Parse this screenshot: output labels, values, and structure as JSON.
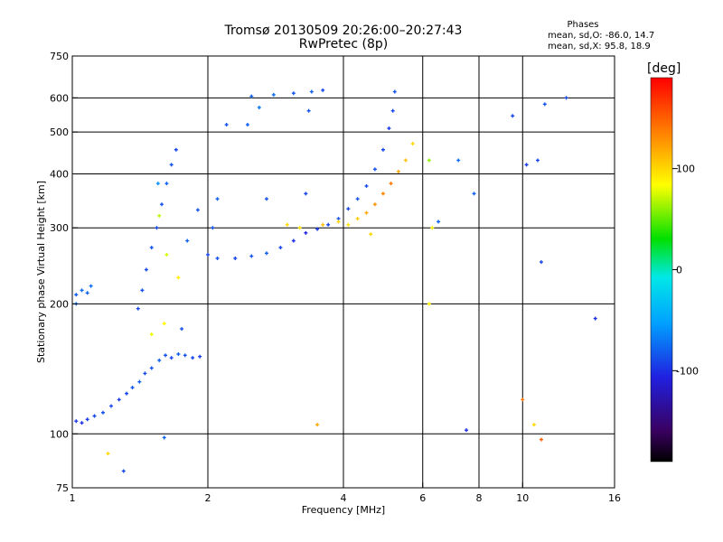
{
  "title": "Tromsø 20130509 20:26:00–20:27:43",
  "subtitle": "RwPretec (8p)",
  "phase_stats": {
    "title": "Phases",
    "line1": "mean, sd,O: -86.0, 14.7",
    "line2": "mean, sd,X:  95.8, 18.9"
  },
  "colorbar": {
    "unit": "[deg]",
    "range": [
      -190,
      190
    ],
    "ticks": [
      100,
      0,
      -100
    ],
    "tick_labels": [
      "100",
      "0",
      "-100"
    ]
  },
  "chart_data": {
    "type": "scatter",
    "title": "Tromsø 20130509 20:26:00–20:27:43",
    "subtitle": "RwPretec (8p)",
    "xlabel": "Frequency [MHz]",
    "ylabel": "Stationary phase Virtual Height [km]",
    "x_scale": "log",
    "y_scale": "log",
    "xlim": [
      1,
      16
    ],
    "ylim": [
      75,
      750
    ],
    "x_ticks": [
      1,
      2,
      4,
      6,
      8,
      10,
      16
    ],
    "x_tick_labels": [
      "1",
      "2",
      "4",
      "6",
      "8",
      "10",
      "16"
    ],
    "y_ticks": [
      75,
      100,
      200,
      300,
      400,
      500,
      600,
      750
    ],
    "y_tick_labels": [
      "75",
      "100",
      "200",
      "300",
      "400",
      "500",
      "600",
      "750"
    ],
    "grid_x": [
      2,
      4,
      6,
      8,
      10
    ],
    "grid_y": [
      100,
      200,
      300,
      400,
      500,
      600
    ],
    "color_by": "phase_deg",
    "series": [
      {
        "trace": "low-layer",
        "points": [
          {
            "x": 1.02,
            "y": 107,
            "p": -95
          },
          {
            "x": 1.05,
            "y": 106,
            "p": -100
          },
          {
            "x": 1.08,
            "y": 108,
            "p": -95
          },
          {
            "x": 1.12,
            "y": 110,
            "p": -90
          },
          {
            "x": 1.17,
            "y": 112,
            "p": -85
          },
          {
            "x": 1.22,
            "y": 116,
            "p": -90
          },
          {
            "x": 1.27,
            "y": 120,
            "p": -95
          },
          {
            "x": 1.32,
            "y": 124,
            "p": -90
          },
          {
            "x": 1.36,
            "y": 128,
            "p": -85
          },
          {
            "x": 1.41,
            "y": 132,
            "p": -80
          },
          {
            "x": 1.45,
            "y": 138,
            "p": -90
          },
          {
            "x": 1.5,
            "y": 142,
            "p": -85
          },
          {
            "x": 1.56,
            "y": 148,
            "p": -80
          },
          {
            "x": 1.61,
            "y": 152,
            "p": -85
          },
          {
            "x": 1.66,
            "y": 150,
            "p": -90
          },
          {
            "x": 1.72,
            "y": 153,
            "p": -80
          },
          {
            "x": 1.78,
            "y": 152,
            "p": -85
          },
          {
            "x": 1.85,
            "y": 150,
            "p": -90
          },
          {
            "x": 1.92,
            "y": 151,
            "p": -95
          }
        ]
      },
      {
        "trace": "E-region",
        "points": [
          {
            "x": 1.02,
            "y": 210,
            "p": -80
          },
          {
            "x": 1.05,
            "y": 215,
            "p": -75
          },
          {
            "x": 1.08,
            "y": 212,
            "p": -80
          },
          {
            "x": 1.1,
            "y": 220,
            "p": -75
          },
          {
            "x": 1.02,
            "y": 200,
            "p": -70
          }
        ]
      },
      {
        "trace": "F1-cusp",
        "points": [
          {
            "x": 1.4,
            "y": 195,
            "p": -90
          },
          {
            "x": 1.43,
            "y": 215,
            "p": -85
          },
          {
            "x": 1.46,
            "y": 240,
            "p": -90
          },
          {
            "x": 1.5,
            "y": 270,
            "p": -85
          },
          {
            "x": 1.54,
            "y": 300,
            "p": -90
          },
          {
            "x": 1.58,
            "y": 340,
            "p": -85
          },
          {
            "x": 1.62,
            "y": 380,
            "p": -80
          },
          {
            "x": 1.66,
            "y": 420,
            "p": -85
          },
          {
            "x": 1.7,
            "y": 455,
            "p": -90
          },
          {
            "x": 1.56,
            "y": 320,
            "p": 70
          },
          {
            "x": 1.62,
            "y": 260,
            "p": 75
          },
          {
            "x": 1.72,
            "y": 230,
            "p": 90
          },
          {
            "x": 1.8,
            "y": 280,
            "p": -80
          },
          {
            "x": 1.9,
            "y": 330,
            "p": -85
          },
          {
            "x": 2.0,
            "y": 260,
            "p": -90
          },
          {
            "x": 2.05,
            "y": 300,
            "p": -85
          },
          {
            "x": 2.1,
            "y": 350,
            "p": -80
          },
          {
            "x": 1.5,
            "y": 170,
            "p": 80
          },
          {
            "x": 1.6,
            "y": 180,
            "p": 85
          },
          {
            "x": 1.75,
            "y": 175,
            "p": -85
          },
          {
            "x": 1.55,
            "y": 380,
            "p": -60
          }
        ]
      },
      {
        "trace": "F-region-O",
        "points": [
          {
            "x": 2.1,
            "y": 255,
            "p": -85
          },
          {
            "x": 2.3,
            "y": 255,
            "p": -90
          },
          {
            "x": 2.5,
            "y": 258,
            "p": -85
          },
          {
            "x": 2.7,
            "y": 262,
            "p": -80
          },
          {
            "x": 2.9,
            "y": 270,
            "p": -90
          },
          {
            "x": 3.1,
            "y": 280,
            "p": -100
          },
          {
            "x": 3.3,
            "y": 292,
            "p": -105
          },
          {
            "x": 3.5,
            "y": 298,
            "p": -95
          },
          {
            "x": 3.7,
            "y": 305,
            "p": -90
          },
          {
            "x": 3.9,
            "y": 315,
            "p": -85
          },
          {
            "x": 4.1,
            "y": 332,
            "p": -90
          },
          {
            "x": 4.3,
            "y": 350,
            "p": -85
          },
          {
            "x": 4.5,
            "y": 375,
            "p": -90
          },
          {
            "x": 4.7,
            "y": 410,
            "p": -85
          },
          {
            "x": 4.9,
            "y": 455,
            "p": -90
          },
          {
            "x": 5.05,
            "y": 510,
            "p": -95
          },
          {
            "x": 5.15,
            "y": 560,
            "p": -90
          },
          {
            "x": 5.2,
            "y": 620,
            "p": -85
          }
        ]
      },
      {
        "trace": "F-region-X",
        "points": [
          {
            "x": 3.0,
            "y": 305,
            "p": 100
          },
          {
            "x": 3.2,
            "y": 300,
            "p": 95
          },
          {
            "x": 3.6,
            "y": 305,
            "p": 110
          },
          {
            "x": 3.9,
            "y": 310,
            "p": 100
          },
          {
            "x": 4.1,
            "y": 305,
            "p": 95
          },
          {
            "x": 4.3,
            "y": 315,
            "p": 105
          },
          {
            "x": 4.5,
            "y": 325,
            "p": 120
          },
          {
            "x": 4.7,
            "y": 340,
            "p": 130
          },
          {
            "x": 4.9,
            "y": 360,
            "p": 135
          },
          {
            "x": 5.1,
            "y": 380,
            "p": 140
          },
          {
            "x": 5.3,
            "y": 405,
            "p": 120
          },
          {
            "x": 5.5,
            "y": 430,
            "p": 110
          },
          {
            "x": 5.7,
            "y": 470,
            "p": 100
          },
          {
            "x": 4.6,
            "y": 290,
            "p": 100
          }
        ]
      },
      {
        "trace": "upper-echoes",
        "points": [
          {
            "x": 2.5,
            "y": 605,
            "p": -80
          },
          {
            "x": 2.8,
            "y": 610,
            "p": -75
          },
          {
            "x": 3.1,
            "y": 615,
            "p": -85
          },
          {
            "x": 3.4,
            "y": 620,
            "p": -80
          },
          {
            "x": 3.6,
            "y": 625,
            "p": -90
          },
          {
            "x": 2.6,
            "y": 570,
            "p": -70
          },
          {
            "x": 2.2,
            "y": 520,
            "p": -85
          },
          {
            "x": 2.45,
            "y": 520,
            "p": -80
          },
          {
            "x": 2.7,
            "y": 350,
            "p": -85
          },
          {
            "x": 3.3,
            "y": 360,
            "p": -90
          },
          {
            "x": 3.35,
            "y": 560,
            "p": -85
          }
        ]
      },
      {
        "trace": "scattered",
        "points": [
          {
            "x": 6.2,
            "y": 430,
            "p": 60
          },
          {
            "x": 6.3,
            "y": 300,
            "p": 90
          },
          {
            "x": 6.5,
            "y": 310,
            "p": -80
          },
          {
            "x": 7.2,
            "y": 430,
            "p": -75
          },
          {
            "x": 7.8,
            "y": 360,
            "p": -80
          },
          {
            "x": 7.5,
            "y": 102,
            "p": -100
          },
          {
            "x": 9.5,
            "y": 545,
            "p": -90
          },
          {
            "x": 10.2,
            "y": 420,
            "p": -95
          },
          {
            "x": 10.8,
            "y": 430,
            "p": -90
          },
          {
            "x": 11.2,
            "y": 580,
            "p": -85
          },
          {
            "x": 12.5,
            "y": 600,
            "p": -90
          },
          {
            "x": 14.5,
            "y": 185,
            "p": -100
          },
          {
            "x": 10.0,
            "y": 120,
            "p": 140
          },
          {
            "x": 10.6,
            "y": 105,
            "p": 100
          },
          {
            "x": 11.0,
            "y": 97,
            "p": 150
          },
          {
            "x": 6.2,
            "y": 200,
            "p": 90
          },
          {
            "x": 3.5,
            "y": 105,
            "p": 120
          },
          {
            "x": 1.3,
            "y": 82,
            "p": -90
          },
          {
            "x": 1.6,
            "y": 98,
            "p": -80
          },
          {
            "x": 1.2,
            "y": 90,
            "p": 100
          },
          {
            "x": 11.0,
            "y": 250,
            "p": -90
          }
        ]
      }
    ]
  }
}
